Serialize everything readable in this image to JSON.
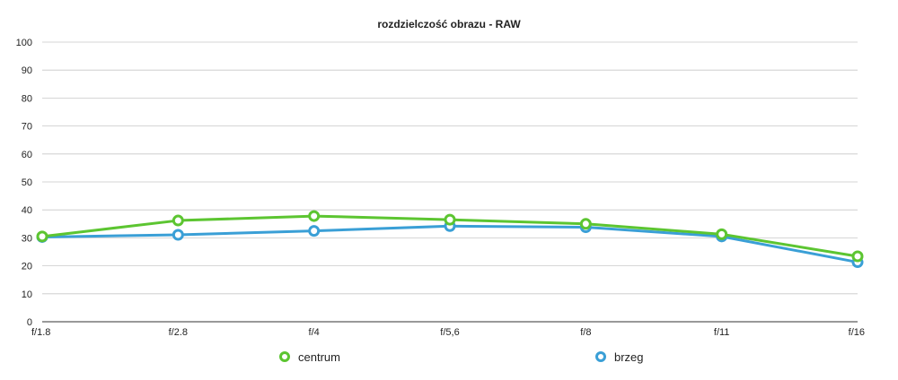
{
  "chart_data": {
    "type": "line",
    "title": "rozdzielczość obrazu - RAW",
    "xlabel": "",
    "ylabel": "",
    "categories": [
      "f/1.8",
      "f/2.8",
      "f/4",
      "f/5,6",
      "f/8",
      "f/11",
      "f/16"
    ],
    "ylim": [
      0,
      100
    ],
    "yticks": [
      0,
      10,
      20,
      30,
      40,
      50,
      60,
      70,
      80,
      90,
      100
    ],
    "grid": true,
    "legend_position": "bottom",
    "series": [
      {
        "name": "centrum",
        "color": "#5cc531",
        "values": [
          30.5,
          36.2,
          37.8,
          36.5,
          35.0,
          31.3,
          23.4
        ]
      },
      {
        "name": "brzeg",
        "color": "#3a9fd6",
        "values": [
          30.3,
          31.1,
          32.5,
          34.2,
          33.8,
          30.5,
          21.3
        ]
      }
    ]
  }
}
